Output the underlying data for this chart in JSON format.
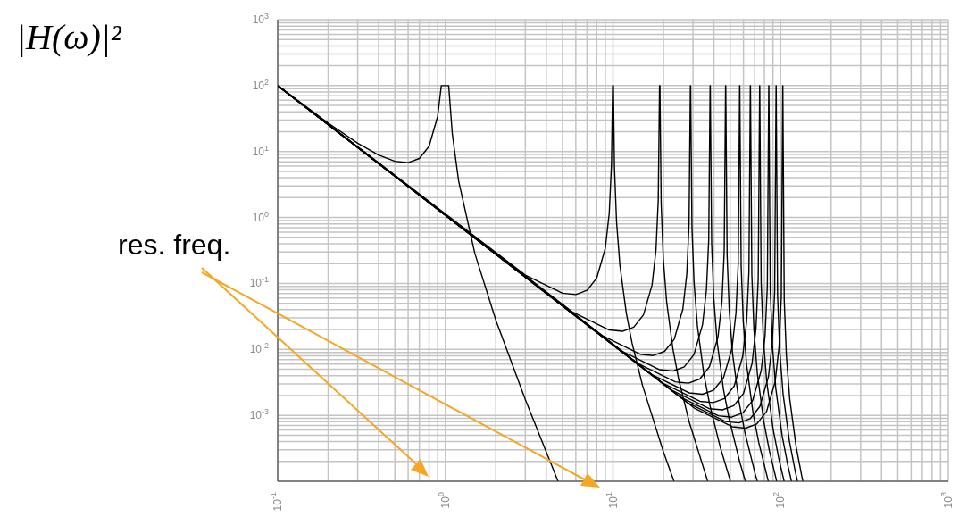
{
  "chart_data": {
    "type": "line",
    "ylabel": "|H(ω)|²",
    "annotations": [
      "res. freq."
    ],
    "log": "xy",
    "grid": true,
    "marker": "none",
    "line_style": "solid",
    "xlim": [
      0.1,
      1000
    ],
    "xticks": [
      {
        "value": 0.1,
        "label": "10$^{-1}$"
      },
      {
        "value": 1,
        "label": "10$^{0}$"
      },
      {
        "value": 10,
        "label": "10$^{1}$"
      },
      {
        "value": 100,
        "label": "10$^{2}$"
      },
      {
        "value": 1000,
        "label": "10$^{3}$"
      }
    ],
    "ylim": [
      0.0001,
      1000
    ],
    "yticks": [
      {
        "value": 0.0001,
        "label": null
      },
      {
        "value": 0.001,
        "label": "10$^{-3}$"
      },
      {
        "value": 0.01,
        "label": "10$^{-2}$"
      },
      {
        "value": 0.1,
        "label": "10$^{-1}$"
      },
      {
        "value": 1,
        "label": "10$^{0}$"
      },
      {
        "value": 10,
        "label": "10$^{1}$"
      },
      {
        "value": 100,
        "label": "10$^{2}$"
      },
      {
        "value": 1000,
        "label": "10$^{3}$"
      }
    ],
    "series": [
      {
        "color": "#000000",
        "x": [
          0.1,
          0.2,
          0.3,
          0.4,
          0.5,
          0.6,
          0.7,
          0.8,
          0.9,
          0.946,
          1.047,
          1.1,
          1.2,
          1.5,
          2,
          3,
          4,
          4.7
        ],
        "values": [
          100,
          27.1,
          13.4,
          8.86,
          7.11,
          6.78,
          7.85,
          12.06,
          34.2,
          100,
          100,
          18.74,
          3.587,
          0.2844,
          0.02778,
          0.001736,
          0.000278,
          0.0001
        ]
      },
      {
        "color": "#000000",
        "x": [
          0.1,
          3,
          5,
          6,
          7,
          8,
          9,
          9.5,
          9.8,
          9.95,
          10.05,
          10.2,
          10.5,
          11,
          12,
          13,
          15,
          20,
          23.1
        ],
        "values": [
          100,
          0.134,
          0.0711,
          0.0678,
          0.0785,
          0.121,
          0.342,
          1.17,
          6.64,
          100,
          100,
          5.89,
          0.863,
          0.187,
          0.0359,
          0.0124,
          0.00284,
          0.000278,
          0.0001
        ]
      },
      {
        "color": "#000000",
        "x": [
          0.1,
          5.7,
          9.5,
          11.4,
          13.3,
          15.2,
          17.1,
          18.05,
          18.62,
          18.95,
          19.05,
          19.38,
          19.95,
          20.9,
          22.8,
          24.7,
          28.5,
          36.7
        ],
        "values": [
          100,
          0.0372,
          0.0197,
          0.0188,
          0.0217,
          0.0334,
          0.0947,
          0.323,
          1.84,
          100,
          100,
          1.63,
          0.239,
          0.0519,
          0.00994,
          0.00344,
          0.000788,
          0.0001
        ]
      },
      {
        "color": "#000000",
        "x": [
          0.1,
          8.7,
          14.5,
          17.4,
          20.3,
          23.2,
          26.1,
          27.55,
          28.42,
          28.95,
          29.05,
          29.58,
          30.45,
          31.9,
          34.8,
          37.7,
          43.5,
          50.2
        ],
        "values": [
          100,
          0.016,
          0.00845,
          0.00806,
          0.00933,
          0.0143,
          0.0407,
          0.139,
          0.79,
          100,
          100,
          0.7,
          0.103,
          0.0223,
          0.00427,
          0.00148,
          0.000338,
          0.0001
        ]
      },
      {
        "color": "#000000",
        "x": [
          0.1,
          11.4,
          19,
          22.8,
          26.6,
          30.4,
          34.2,
          36.1,
          37.24,
          37.95,
          38.05,
          38.76,
          39.9,
          41.8,
          45.6,
          49.4,
          57,
          61.6
        ],
        "values": [
          100,
          0.00929,
          0.00492,
          0.0047,
          0.00544,
          0.00835,
          0.0237,
          0.0807,
          0.46,
          100,
          100,
          0.408,
          0.0598,
          0.013,
          0.00248,
          0.000861,
          0.000197,
          0.0001
        ]
      },
      {
        "color": "#000000",
        "x": [
          0.1,
          14.1,
          23.5,
          28.2,
          32.9,
          37.6,
          42.3,
          44.65,
          46.06,
          46.95,
          47.05,
          47.94,
          49.35,
          51.7,
          56.4,
          61.1,
          70.5,
          72.6
        ],
        "values": [
          100,
          0.00608,
          0.00322,
          0.00307,
          0.00355,
          0.00546,
          0.0155,
          0.0528,
          0.301,
          100,
          100,
          0.267,
          0.0391,
          0.00848,
          0.00162,
          0.000563,
          0.000129,
          0.0001
        ]
      },
      {
        "color": "#000000",
        "x": [
          0.1,
          17.1,
          28.5,
          34.2,
          39.9,
          45.6,
          51.3,
          54.15,
          55.86,
          56.95,
          57.05,
          58.14,
          59.85,
          62.7,
          68.4,
          74.1,
          84.4
        ],
        "values": [
          100,
          0.00413,
          0.00219,
          0.00209,
          0.00242,
          0.00371,
          0.0105,
          0.0359,
          0.204,
          100,
          100,
          0.181,
          0.0266,
          0.00577,
          0.0011,
          0.000383,
          0.0001
        ]
      },
      {
        "color": "#000000",
        "x": [
          0.1,
          19.8,
          33,
          39.6,
          46.2,
          52.8,
          59.4,
          62.7,
          64.68,
          65.95,
          66.05,
          67.32,
          69.3,
          72.6,
          79.2,
          85.8,
          94.7
        ],
        "values": [
          100,
          0.00308,
          0.00163,
          0.00156,
          0.0018,
          0.00277,
          0.00785,
          0.0268,
          0.152,
          100,
          100,
          0.135,
          0.0198,
          0.0043,
          0.000823,
          0.000285,
          0.0001
        ]
      },
      {
        "color": "#000000",
        "x": [
          0.1,
          22.5,
          37.5,
          45,
          52.5,
          60,
          67.5,
          71.25,
          73.5,
          74.95,
          75.05,
          76.5,
          78.75,
          82.5,
          90,
          97.5,
          104.9
        ],
        "values": [
          100,
          0.00239,
          0.00126,
          0.00121,
          0.0014,
          0.00214,
          0.00608,
          0.0207,
          0.118,
          100,
          100,
          0.105,
          0.0153,
          0.00333,
          0.000638,
          0.000221,
          0.0001
        ]
      },
      {
        "color": "#000000",
        "x": [
          0.1,
          25.5,
          42.5,
          51,
          59.5,
          68,
          76.5,
          80.75,
          83.3,
          84.95,
          85.05,
          86.7,
          89.25,
          93.5,
          102,
          110.5,
          116
        ],
        "values": [
          100,
          0.00186,
          0.000984,
          0.000938,
          0.00109,
          0.00167,
          0.00473,
          0.0161,
          0.0919,
          100,
          100,
          0.0815,
          0.0119,
          0.00259,
          0.000496,
          0.000172,
          0.0001
        ]
      },
      {
        "color": "#000000",
        "x": [
          0.1,
          28.2,
          47,
          56.4,
          65.8,
          75.2,
          84.6,
          89.3,
          92.12,
          93.95,
          94.05,
          95.88,
          98.7,
          103.4,
          112.8,
          122.2,
          126
        ],
        "values": [
          100,
          0.00152,
          0.000805,
          0.000767,
          0.000888,
          0.00136,
          0.00387,
          0.0132,
          0.0751,
          100,
          100,
          0.0667,
          0.00977,
          0.00212,
          0.000406,
          0.000141,
          0.0001
        ]
      },
      {
        "color": "#000000",
        "x": [
          0.1,
          30.9,
          51.5,
          61.8,
          72.1,
          82.4,
          92.7,
          97.85,
          100.94,
          102.95,
          103.05,
          105.06,
          108.15,
          113.3,
          123.6,
          133.9,
          135.8
        ],
        "values": [
          100,
          0.00126,
          0.00067,
          0.000639,
          0.00074,
          0.00114,
          0.00322,
          0.011,
          0.0626,
          100,
          100,
          0.0555,
          0.00813,
          0.00177,
          0.000338,
          0.000117,
          0.0001
        ]
      }
    ]
  }
}
